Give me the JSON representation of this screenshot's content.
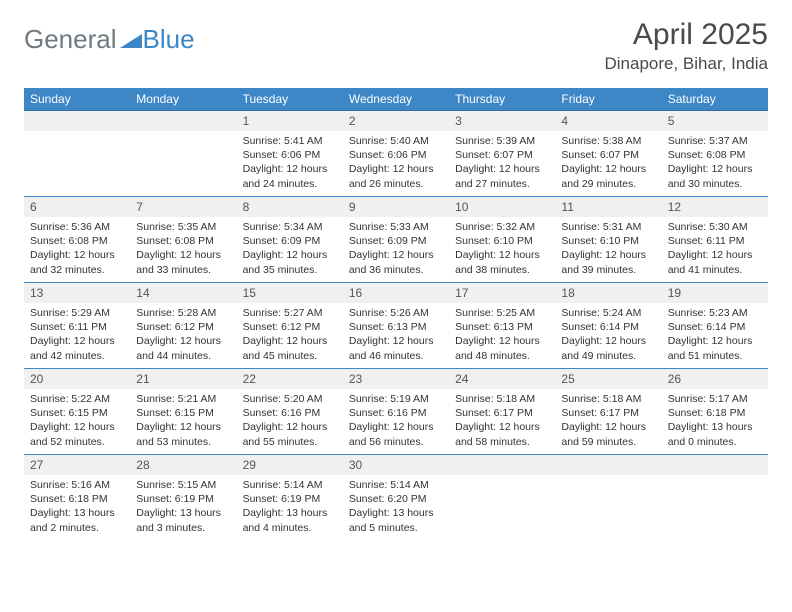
{
  "brand": {
    "part1": "General",
    "part2": "Blue"
  },
  "title": "April 2025",
  "location": "Dinapore, Bihar, India",
  "colors": {
    "header_bg": "#3d87c7",
    "header_text": "#ffffff",
    "daynum_bg": "#eef0f1",
    "text": "#333333",
    "week_border": "#3d87c7",
    "logo_gray": "#6f7a80",
    "logo_blue": "#3d87c7"
  },
  "weekdays": [
    "Sunday",
    "Monday",
    "Tuesday",
    "Wednesday",
    "Thursday",
    "Friday",
    "Saturday"
  ],
  "weeks": [
    [
      null,
      null,
      {
        "day": "1",
        "sunrise": "Sunrise: 5:41 AM",
        "sunset": "Sunset: 6:06 PM",
        "daylight": "Daylight: 12 hours and 24 minutes."
      },
      {
        "day": "2",
        "sunrise": "Sunrise: 5:40 AM",
        "sunset": "Sunset: 6:06 PM",
        "daylight": "Daylight: 12 hours and 26 minutes."
      },
      {
        "day": "3",
        "sunrise": "Sunrise: 5:39 AM",
        "sunset": "Sunset: 6:07 PM",
        "daylight": "Daylight: 12 hours and 27 minutes."
      },
      {
        "day": "4",
        "sunrise": "Sunrise: 5:38 AM",
        "sunset": "Sunset: 6:07 PM",
        "daylight": "Daylight: 12 hours and 29 minutes."
      },
      {
        "day": "5",
        "sunrise": "Sunrise: 5:37 AM",
        "sunset": "Sunset: 6:08 PM",
        "daylight": "Daylight: 12 hours and 30 minutes."
      }
    ],
    [
      {
        "day": "6",
        "sunrise": "Sunrise: 5:36 AM",
        "sunset": "Sunset: 6:08 PM",
        "daylight": "Daylight: 12 hours and 32 minutes."
      },
      {
        "day": "7",
        "sunrise": "Sunrise: 5:35 AM",
        "sunset": "Sunset: 6:08 PM",
        "daylight": "Daylight: 12 hours and 33 minutes."
      },
      {
        "day": "8",
        "sunrise": "Sunrise: 5:34 AM",
        "sunset": "Sunset: 6:09 PM",
        "daylight": "Daylight: 12 hours and 35 minutes."
      },
      {
        "day": "9",
        "sunrise": "Sunrise: 5:33 AM",
        "sunset": "Sunset: 6:09 PM",
        "daylight": "Daylight: 12 hours and 36 minutes."
      },
      {
        "day": "10",
        "sunrise": "Sunrise: 5:32 AM",
        "sunset": "Sunset: 6:10 PM",
        "daylight": "Daylight: 12 hours and 38 minutes."
      },
      {
        "day": "11",
        "sunrise": "Sunrise: 5:31 AM",
        "sunset": "Sunset: 6:10 PM",
        "daylight": "Daylight: 12 hours and 39 minutes."
      },
      {
        "day": "12",
        "sunrise": "Sunrise: 5:30 AM",
        "sunset": "Sunset: 6:11 PM",
        "daylight": "Daylight: 12 hours and 41 minutes."
      }
    ],
    [
      {
        "day": "13",
        "sunrise": "Sunrise: 5:29 AM",
        "sunset": "Sunset: 6:11 PM",
        "daylight": "Daylight: 12 hours and 42 minutes."
      },
      {
        "day": "14",
        "sunrise": "Sunrise: 5:28 AM",
        "sunset": "Sunset: 6:12 PM",
        "daylight": "Daylight: 12 hours and 44 minutes."
      },
      {
        "day": "15",
        "sunrise": "Sunrise: 5:27 AM",
        "sunset": "Sunset: 6:12 PM",
        "daylight": "Daylight: 12 hours and 45 minutes."
      },
      {
        "day": "16",
        "sunrise": "Sunrise: 5:26 AM",
        "sunset": "Sunset: 6:13 PM",
        "daylight": "Daylight: 12 hours and 46 minutes."
      },
      {
        "day": "17",
        "sunrise": "Sunrise: 5:25 AM",
        "sunset": "Sunset: 6:13 PM",
        "daylight": "Daylight: 12 hours and 48 minutes."
      },
      {
        "day": "18",
        "sunrise": "Sunrise: 5:24 AM",
        "sunset": "Sunset: 6:14 PM",
        "daylight": "Daylight: 12 hours and 49 minutes."
      },
      {
        "day": "19",
        "sunrise": "Sunrise: 5:23 AM",
        "sunset": "Sunset: 6:14 PM",
        "daylight": "Daylight: 12 hours and 51 minutes."
      }
    ],
    [
      {
        "day": "20",
        "sunrise": "Sunrise: 5:22 AM",
        "sunset": "Sunset: 6:15 PM",
        "daylight": "Daylight: 12 hours and 52 minutes."
      },
      {
        "day": "21",
        "sunrise": "Sunrise: 5:21 AM",
        "sunset": "Sunset: 6:15 PM",
        "daylight": "Daylight: 12 hours and 53 minutes."
      },
      {
        "day": "22",
        "sunrise": "Sunrise: 5:20 AM",
        "sunset": "Sunset: 6:16 PM",
        "daylight": "Daylight: 12 hours and 55 minutes."
      },
      {
        "day": "23",
        "sunrise": "Sunrise: 5:19 AM",
        "sunset": "Sunset: 6:16 PM",
        "daylight": "Daylight: 12 hours and 56 minutes."
      },
      {
        "day": "24",
        "sunrise": "Sunrise: 5:18 AM",
        "sunset": "Sunset: 6:17 PM",
        "daylight": "Daylight: 12 hours and 58 minutes."
      },
      {
        "day": "25",
        "sunrise": "Sunrise: 5:18 AM",
        "sunset": "Sunset: 6:17 PM",
        "daylight": "Daylight: 12 hours and 59 minutes."
      },
      {
        "day": "26",
        "sunrise": "Sunrise: 5:17 AM",
        "sunset": "Sunset: 6:18 PM",
        "daylight": "Daylight: 13 hours and 0 minutes."
      }
    ],
    [
      {
        "day": "27",
        "sunrise": "Sunrise: 5:16 AM",
        "sunset": "Sunset: 6:18 PM",
        "daylight": "Daylight: 13 hours and 2 minutes."
      },
      {
        "day": "28",
        "sunrise": "Sunrise: 5:15 AM",
        "sunset": "Sunset: 6:19 PM",
        "daylight": "Daylight: 13 hours and 3 minutes."
      },
      {
        "day": "29",
        "sunrise": "Sunrise: 5:14 AM",
        "sunset": "Sunset: 6:19 PM",
        "daylight": "Daylight: 13 hours and 4 minutes."
      },
      {
        "day": "30",
        "sunrise": "Sunrise: 5:14 AM",
        "sunset": "Sunset: 6:20 PM",
        "daylight": "Daylight: 13 hours and 5 minutes."
      },
      null,
      null,
      null
    ]
  ]
}
